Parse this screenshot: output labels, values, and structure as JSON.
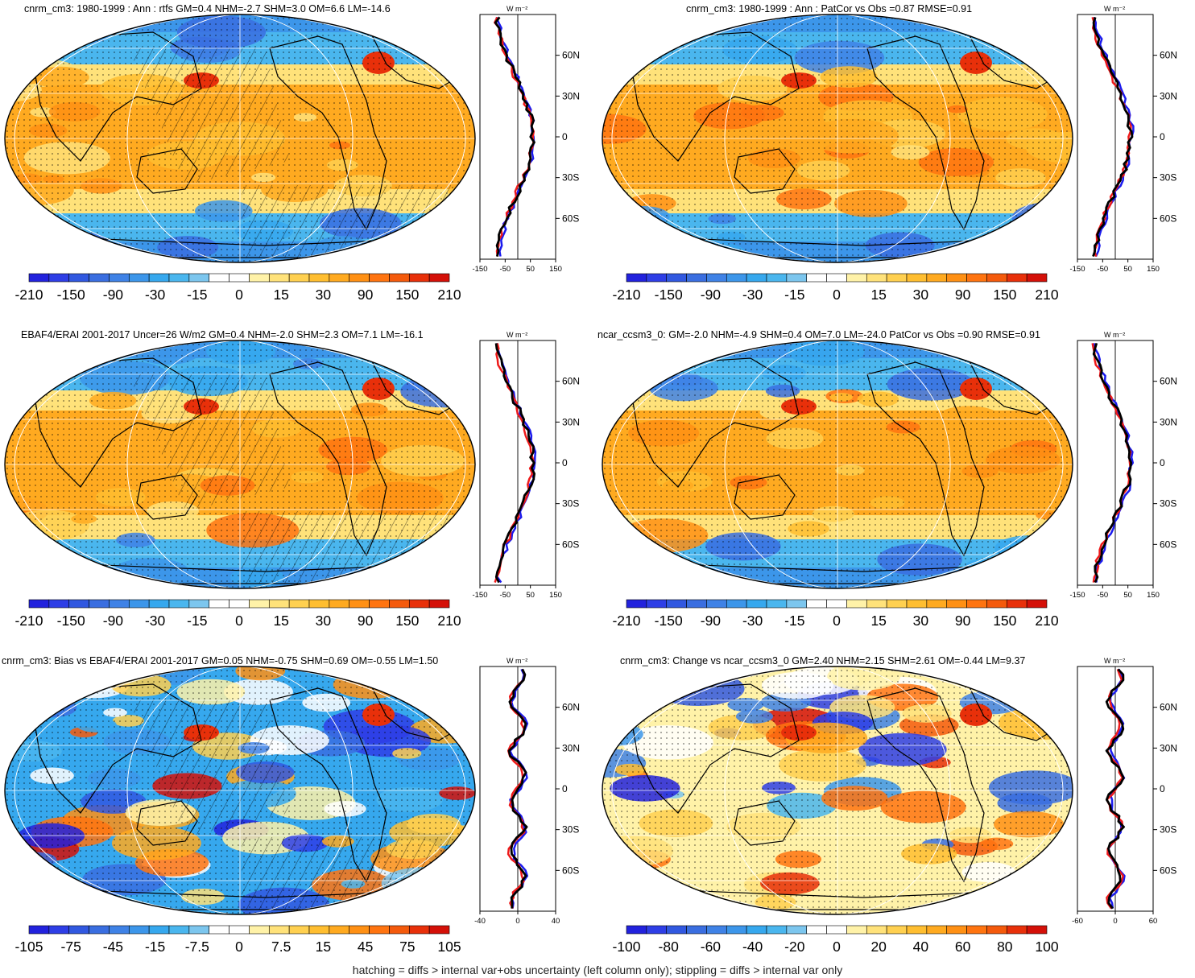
{
  "footer": "hatching = diffs > internal var+obs uncertainty (left column only); stippling = diffs > internal var only",
  "profile_unit": "W m⁻²",
  "latitude_labels": [
    "60N",
    "30N",
    "0",
    "30S",
    "60S"
  ],
  "colors": {
    "ramp_full": [
      "#2222dd",
      "#2e3ee6",
      "#3158e0",
      "#3a6ee0",
      "#3f82e6",
      "#3c96ea",
      "#36a8ee",
      "#4ab6ee",
      "#7cc6ee",
      "#ffffff",
      "#ffffff",
      "#fff2a8",
      "#ffe27a",
      "#ffd050",
      "#ffbe30",
      "#ffaa20",
      "#ff9014",
      "#ff7410",
      "#f45a0c",
      "#e8300a",
      "#d41008"
    ],
    "ocean_neg": "#3c96ea",
    "ocean_pos": "#ffb42a",
    "profile_blue": "#1a1aee",
    "profile_red": "#ee1a1a",
    "profile_black": "#000000"
  },
  "panels": [
    {
      "id": "p1",
      "title": "cnrm_cm3: 1980-1999 : Ann : rtfs GM=0.4 NHM=-2.7 SHM=3.0 OM=6.6 LM=-14.6",
      "colorbar_labels": [
        "-210",
        "-150",
        "-90",
        "-30",
        "-15",
        "0",
        "15",
        "30",
        "90",
        "150",
        "210"
      ],
      "profile_xlim": [
        -150,
        150
      ],
      "profile_ticks": [
        "-150",
        "-50",
        "50",
        "150"
      ],
      "hatched": true
    },
    {
      "id": "p2",
      "title": "cnrm_cm3: 1980-1999 : Ann : PatCor vs Obs =0.87 RMSE=0.91",
      "colorbar_labels": [
        "-210",
        "-150",
        "-90",
        "-30",
        "-15",
        "0",
        "15",
        "30",
        "90",
        "150",
        "210"
      ],
      "profile_xlim": [
        -150,
        150
      ],
      "profile_ticks": [
        "-150",
        "-50",
        "50",
        "150"
      ],
      "hatched": false
    },
    {
      "id": "p3",
      "title": "EBAF4/ERAI 2001-2017 Uncer=26 W/m2 GM=0.4 NHM=-2.0 SHM=2.3 OM=7.1 LM=-16.1",
      "colorbar_labels": [
        "-210",
        "-150",
        "-90",
        "-30",
        "-15",
        "0",
        "15",
        "30",
        "90",
        "150",
        "210"
      ],
      "profile_xlim": [
        -150,
        150
      ],
      "profile_ticks": [
        "-150",
        "-50",
        "50",
        "150"
      ],
      "hatched": true
    },
    {
      "id": "p4",
      "title": "ncar_ccsm3_0: GM=-2.0 NHM=-4.9 SHM=0.4 OM=7.0 LM=-24.0 PatCor vs Obs =0.90 RMSE=0.91",
      "colorbar_labels": [
        "-210",
        "-150",
        "-90",
        "-30",
        "-15",
        "0",
        "15",
        "30",
        "90",
        "150",
        "210"
      ],
      "profile_xlim": [
        -150,
        150
      ],
      "profile_ticks": [
        "-150",
        "-50",
        "50",
        "150"
      ],
      "hatched": false
    },
    {
      "id": "p5",
      "title": "cnrm_cm3: Bias vs EBAF4/ERAI 2001-2017 GM=0.05 NHM=-0.75 SHM=0.69 OM=-0.55 LM=1.50",
      "colorbar_labels": [
        "-105",
        "-75",
        "-45",
        "-15",
        "-7.5",
        "0",
        "7.5",
        "15",
        "45",
        "75",
        "105"
      ],
      "profile_xlim": [
        -40,
        40
      ],
      "profile_ticks": [
        "-40",
        "0",
        "40"
      ],
      "hatched": true
    },
    {
      "id": "p6",
      "title": "cnrm_cm3: Change vs ncar_ccsm3_0 GM=2.40 NHM=2.15 SHM=2.61 OM=-0.44 LM=9.37",
      "colorbar_labels": [
        "-100",
        "-80",
        "-60",
        "-40",
        "-20",
        "0",
        "20",
        "40",
        "60",
        "80",
        "100"
      ],
      "profile_xlim": [
        -60,
        60
      ],
      "profile_ticks": [
        "-60",
        "0",
        "60"
      ],
      "hatched": false
    }
  ]
}
